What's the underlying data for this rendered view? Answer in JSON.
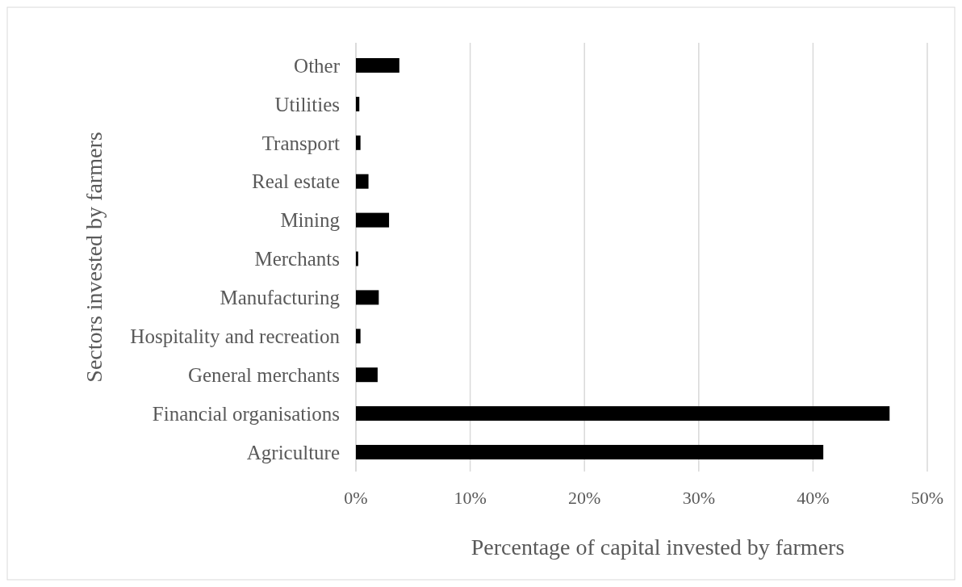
{
  "chart_data": {
    "type": "bar",
    "orientation": "horizontal",
    "xlabel": "Percentage of capital invested by farmers",
    "ylabel": "Sectors invested by farmers",
    "categories": [
      "Other",
      "Utilities",
      "Transport",
      "Real estate",
      "Mining",
      "Merchants",
      "Manufacturing",
      "Hospitality and recreation",
      "General merchants",
      "Financial organisations",
      "Agriculture"
    ],
    "values": [
      3.8,
      0.3,
      0.4,
      1.1,
      2.9,
      0.2,
      2.0,
      0.4,
      1.9,
      46.7,
      40.9
    ],
    "color": "#000000",
    "xlim": [
      0,
      50
    ],
    "xticks": [
      {
        "value": 0,
        "label": "0%"
      },
      {
        "value": 10,
        "label": "10%"
      },
      {
        "value": 20,
        "label": "20%"
      },
      {
        "value": 30,
        "label": "30%"
      },
      {
        "value": 40,
        "label": "40%"
      },
      {
        "value": 50,
        "label": "50%"
      }
    ],
    "grid": "x"
  }
}
